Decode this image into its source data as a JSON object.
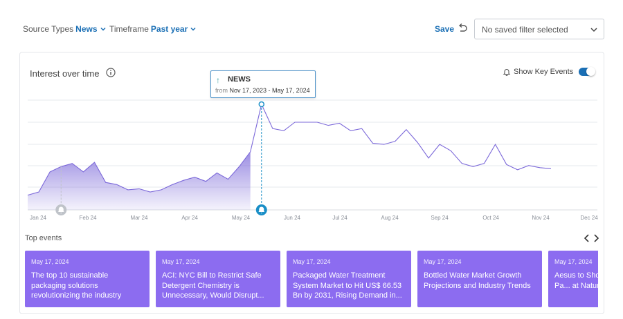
{
  "filters": {
    "source_types": {
      "label": "Source Types",
      "value": "News"
    },
    "timeframe": {
      "label": "Timeframe",
      "value": "Past year"
    }
  },
  "save_label": "Save",
  "saved_filter": {
    "value": "No saved filter selected"
  },
  "card": {
    "title": "Interest over time",
    "show_key_events_label": "Show Key Events",
    "show_key_events_on": true
  },
  "tooltip": {
    "title": "NEWS",
    "from_label": "from",
    "range": "Nov 17, 2023 - May 17, 2024"
  },
  "top_events": {
    "title": "Top events",
    "items": [
      {
        "date": "May 17, 2024",
        "headline": "The top 10 sustainable packaging solutions revolutionizing the industry"
      },
      {
        "date": "May 17, 2024",
        "headline": "ACI: NYC Bill to Restrict Safe Detergent Chemistry is Unnecessary, Would Disrupt..."
      },
      {
        "date": "May 17, 2024",
        "headline": "Packaged Water Treatment System Market to Hit US$ 66.53 Bn by 2031, Rising Demand in..."
      },
      {
        "date": "May 17, 2024",
        "headline": "Bottled Water Market Growth Projections and Industry Trends"
      },
      {
        "date": "May 17, 2024",
        "headline": "Aesus to Showcase Changing Pa... at Natural Pr..."
      }
    ]
  },
  "colors": {
    "accent": "#1a6fb5",
    "line": "#7b68d9",
    "event_card": "#8c6cf0"
  },
  "chart_data": {
    "type": "area",
    "x_ticks": [
      "Jan 24",
      "Feb 24",
      "Mar 24",
      "Apr 24",
      "May 24",
      "Jun 24",
      "Jul 24",
      "Aug 24",
      "Sep 24",
      "Oct 24",
      "Nov 24",
      "Dec 24"
    ],
    "ylim": [
      0,
      100
    ],
    "grid": true,
    "shaded_until_index": 20,
    "values": [
      14,
      17,
      36,
      41,
      44,
      36,
      45,
      26,
      24,
      19,
      20,
      17,
      19,
      24,
      28,
      31,
      27,
      35,
      29,
      41,
      55,
      100,
      77,
      75,
      83,
      83,
      83,
      80,
      82,
      75,
      77,
      63,
      62,
      65,
      76,
      64,
      49,
      62,
      56,
      44,
      41,
      44,
      62,
      43,
      38,
      42,
      40,
      39
    ],
    "key_events_at_index": [
      3,
      21
    ]
  }
}
